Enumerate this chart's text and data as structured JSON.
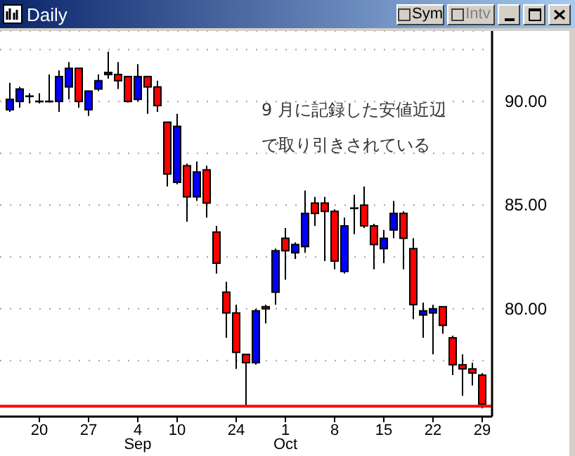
{
  "chart_data": {
    "type": "candlestick",
    "title": "Daily",
    "categories": [
      null,
      null,
      null,
      "20",
      null,
      null,
      null,
      null,
      "27",
      null,
      null,
      null,
      null,
      "4",
      null,
      null,
      null,
      "10",
      null,
      null,
      null,
      null,
      null,
      "24",
      null,
      null,
      null,
      null,
      "1",
      null,
      null,
      null,
      null,
      "8",
      null,
      null,
      null,
      null,
      "15",
      null,
      null,
      null,
      null,
      "22",
      null,
      null,
      null,
      null,
      "29"
    ],
    "ohlc": [
      [
        89.6,
        90.9,
        89.5,
        90.1
      ],
      [
        90.0,
        90.7,
        89.7,
        90.6
      ],
      [
        90.2,
        90.4,
        89.9,
        90.25
      ],
      [
        90.0,
        90.4,
        89.9,
        89.95
      ],
      [
        90.0,
        91.3,
        89.95,
        89.98
      ],
      [
        90.0,
        91.5,
        89.5,
        91.2
      ],
      [
        90.7,
        91.9,
        90.1,
        91.6
      ],
      [
        91.6,
        91.6,
        89.7,
        90.0
      ],
      [
        89.6,
        90.5,
        89.3,
        90.5
      ],
      [
        90.6,
        91.3,
        90.5,
        91.0
      ],
      [
        91.3,
        92.4,
        91.1,
        91.4
      ],
      [
        91.3,
        91.9,
        90.6,
        91.0
      ],
      [
        91.2,
        91.2,
        89.95,
        90.0
      ],
      [
        90.1,
        91.8,
        90.0,
        91.2
      ],
      [
        91.2,
        91.2,
        89.4,
        90.7
      ],
      [
        90.7,
        91.0,
        89.5,
        89.8
      ],
      [
        89.0,
        89.0,
        85.9,
        86.5
      ],
      [
        86.1,
        89.4,
        86.0,
        88.8
      ],
      [
        86.9,
        87.0,
        84.2,
        85.4
      ],
      [
        85.4,
        87.1,
        85.2,
        86.6
      ],
      [
        86.7,
        86.9,
        84.4,
        85.1
      ],
      [
        83.7,
        84.0,
        81.7,
        82.2
      ],
      [
        80.8,
        81.3,
        78.6,
        79.8
      ],
      [
        79.8,
        80.2,
        77.1,
        77.9
      ],
      [
        77.8,
        77.8,
        75.3,
        77.4
      ],
      [
        77.4,
        80.0,
        77.3,
        79.9
      ],
      [
        80.1,
        80.2,
        79.3,
        80.0
      ],
      [
        80.8,
        82.9,
        80.2,
        82.8
      ],
      [
        83.4,
        83.9,
        81.4,
        82.8
      ],
      [
        82.7,
        83.2,
        82.4,
        83.1
      ],
      [
        83.0,
        85.7,
        82.7,
        84.6
      ],
      [
        85.1,
        85.4,
        84.0,
        84.6
      ],
      [
        85.1,
        85.4,
        82.3,
        84.7
      ],
      [
        84.7,
        84.8,
        81.9,
        82.3
      ],
      [
        81.8,
        84.4,
        81.7,
        84.0
      ],
      [
        84.8,
        85.5,
        83.6,
        84.85
      ],
      [
        85.0,
        85.9,
        83.9,
        84.0
      ],
      [
        84.0,
        84.1,
        81.9,
        83.1
      ],
      [
        82.9,
        83.8,
        82.2,
        83.4
      ],
      [
        83.8,
        85.2,
        83.4,
        84.6
      ],
      [
        84.6,
        84.7,
        81.9,
        83.4
      ],
      [
        82.9,
        83.4,
        79.5,
        80.2
      ],
      [
        79.7,
        80.3,
        78.6,
        79.9
      ],
      [
        79.8,
        80.2,
        77.8,
        80.0
      ],
      [
        80.1,
        80.1,
        78.8,
        79.2
      ],
      [
        78.6,
        78.7,
        76.8,
        77.3
      ],
      [
        77.3,
        77.8,
        75.8,
        77.1
      ],
      [
        77.1,
        77.4,
        76.3,
        76.9
      ],
      [
        76.8,
        76.9,
        75.2,
        75.4
      ]
    ],
    "colors": [
      "#0000ff",
      "#0000ff",
      "#000000",
      "#000000",
      "#000000",
      "#0000ff",
      "#0000ff",
      "#ff0000",
      "#0000ff",
      "#0000ff",
      "#0000ff",
      "#ff0000",
      "#ff0000",
      "#0000ff",
      "#ff0000",
      "#ff0000",
      "#ff0000",
      "#0000ff",
      "#ff0000",
      "#0000ff",
      "#ff0000",
      "#ff0000",
      "#ff0000",
      "#ff0000",
      "#ff0000",
      "#0000ff",
      "#ff0000",
      "#0000ff",
      "#ff0000",
      "#0000ff",
      "#0000ff",
      "#ff0000",
      "#ff0000",
      "#ff0000",
      "#0000ff",
      "#000000",
      "#ff0000",
      "#ff0000",
      "#0000ff",
      "#0000ff",
      "#ff0000",
      "#ff0000",
      "#0000ff",
      "#0000ff",
      "#ff0000",
      "#ff0000",
      "#ff0000",
      "#ff0000",
      "#ff0000"
    ],
    "ylim": [
      74.8,
      93.4
    ],
    "yticks": [
      {
        "value": 77.5,
        "label": null
      },
      {
        "value": 80,
        "label": "80.00"
      },
      {
        "value": 82.5,
        "label": null
      },
      {
        "value": 85,
        "label": "85.00"
      },
      {
        "value": 87.5,
        "label": null
      },
      {
        "value": 90,
        "label": "90.00"
      },
      {
        "value": 92.5,
        "label": null
      }
    ],
    "grid": "y",
    "ref_lines": [
      {
        "axis": "y",
        "value": 75.3,
        "color": "#ff0000"
      }
    ],
    "annotations": [
      "9 月に記録した安値近辺で取り引きされている",
      "Sep",
      "Oct",
      "Sym",
      "Intv"
    ]
  }
}
